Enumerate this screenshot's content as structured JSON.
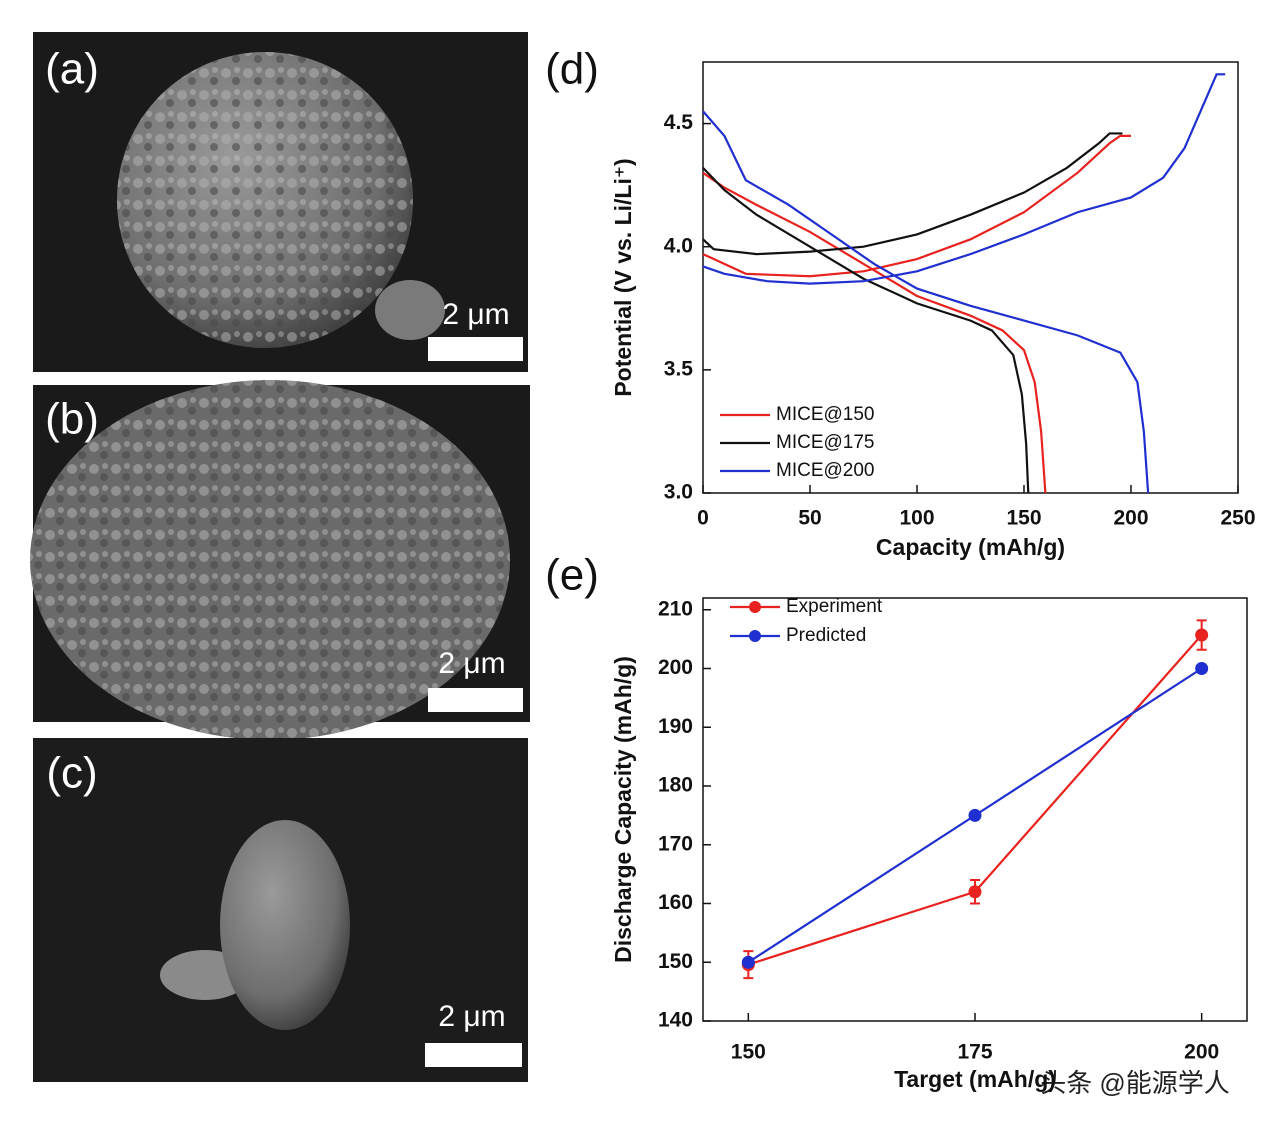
{
  "panels": [
    {
      "label": "(a)",
      "scale": "2 μm"
    },
    {
      "label": "(b)",
      "scale": "2 μm"
    },
    {
      "label": "(c)",
      "scale": "2 μm"
    }
  ],
  "chart_data": [
    {
      "type": "line",
      "label": "(d)",
      "x_label": "Capacity (mAh/g)",
      "y_label": "Potential (V vs. Li/Li⁺)",
      "xlim": [
        0,
        250
      ],
      "xticks": [
        0,
        50,
        100,
        150,
        200,
        250
      ],
      "ylim": [
        3.0,
        4.75
      ],
      "yticks": [
        {
          "value": 3.0,
          "label": "3.0"
        },
        {
          "value": 3.5,
          "label": "3.5"
        },
        {
          "value": 4.0,
          "label": "4.0"
        },
        {
          "value": 4.5,
          "label": "4.5"
        }
      ],
      "series": [
        {
          "name": "MICE@150",
          "color": "#e8221f",
          "discharge": {
            "x": [
              0,
              10,
              25,
              50,
              75,
              100,
              125,
              140,
              150,
              155,
              158,
              160
            ],
            "values": [
              4.3,
              4.24,
              4.17,
              4.06,
              3.93,
              3.8,
              3.72,
              3.66,
              3.58,
              3.45,
              3.25,
              3.0
            ]
          },
          "charge": {
            "x": [
              0,
              5,
              20,
              50,
              75,
              100,
              125,
              150,
              175,
              190,
              195,
              200
            ],
            "values": [
              3.97,
              3.95,
              3.89,
              3.88,
              3.9,
              3.95,
              4.03,
              4.14,
              4.3,
              4.42,
              4.45,
              4.45
            ]
          }
        },
        {
          "name": "MICE@175",
          "color": "#111111",
          "discharge": {
            "x": [
              0,
              10,
              25,
              50,
              75,
              100,
              125,
              135,
              145,
              149,
              151,
              152
            ],
            "values": [
              4.32,
              4.23,
              4.13,
              4.0,
              3.87,
              3.77,
              3.7,
              3.66,
              3.56,
              3.4,
              3.2,
              3.0
            ]
          },
          "charge": {
            "x": [
              0,
              5,
              25,
              50,
              75,
              100,
              125,
              150,
              170,
              185,
              190,
              196
            ],
            "values": [
              4.03,
              3.99,
              3.97,
              3.98,
              4.0,
              4.05,
              4.13,
              4.22,
              4.32,
              4.42,
              4.46,
              4.46
            ]
          }
        },
        {
          "name": "MICE@200",
          "color": "#1f2fd0",
          "discharge": {
            "x": [
              0,
              10,
              20,
              40,
              60,
              80,
              100,
              125,
              150,
              175,
              195,
              203,
              206,
              208
            ],
            "values": [
              4.55,
              4.45,
              4.27,
              4.17,
              4.05,
              3.93,
              3.83,
              3.76,
              3.7,
              3.64,
              3.57,
              3.45,
              3.25,
              3.0
            ]
          },
          "charge": {
            "x": [
              0,
              10,
              30,
              50,
              75,
              100,
              125,
              150,
              175,
              200,
              215,
              225,
              235,
              240,
              244
            ],
            "values": [
              3.92,
              3.89,
              3.86,
              3.85,
              3.86,
              3.9,
              3.97,
              4.05,
              4.14,
              4.2,
              4.28,
              4.4,
              4.6,
              4.7,
              4.7
            ]
          }
        }
      ]
    },
    {
      "type": "line",
      "label": "(e)",
      "x_label": "Target (mAh/g)",
      "y_label": "Discharge Capacity (mAh/g)",
      "xlim": [
        145,
        205
      ],
      "xticks": [
        150,
        175,
        200
      ],
      "ylim": [
        140,
        212
      ],
      "yticks": [
        140,
        150,
        160,
        170,
        180,
        190,
        200,
        210
      ],
      "x": [
        150,
        175,
        200
      ],
      "series": [
        {
          "name": "Experiment",
          "color": "#e8221f",
          "values": [
            149.6,
            162,
            205.7
          ],
          "errors": [
            2.3,
            2,
            2.5
          ]
        },
        {
          "name": "Predicted",
          "color": "#1f2fd0",
          "values": [
            150,
            175,
            200
          ]
        }
      ]
    }
  ],
  "watermark": "头条 @能源学人"
}
